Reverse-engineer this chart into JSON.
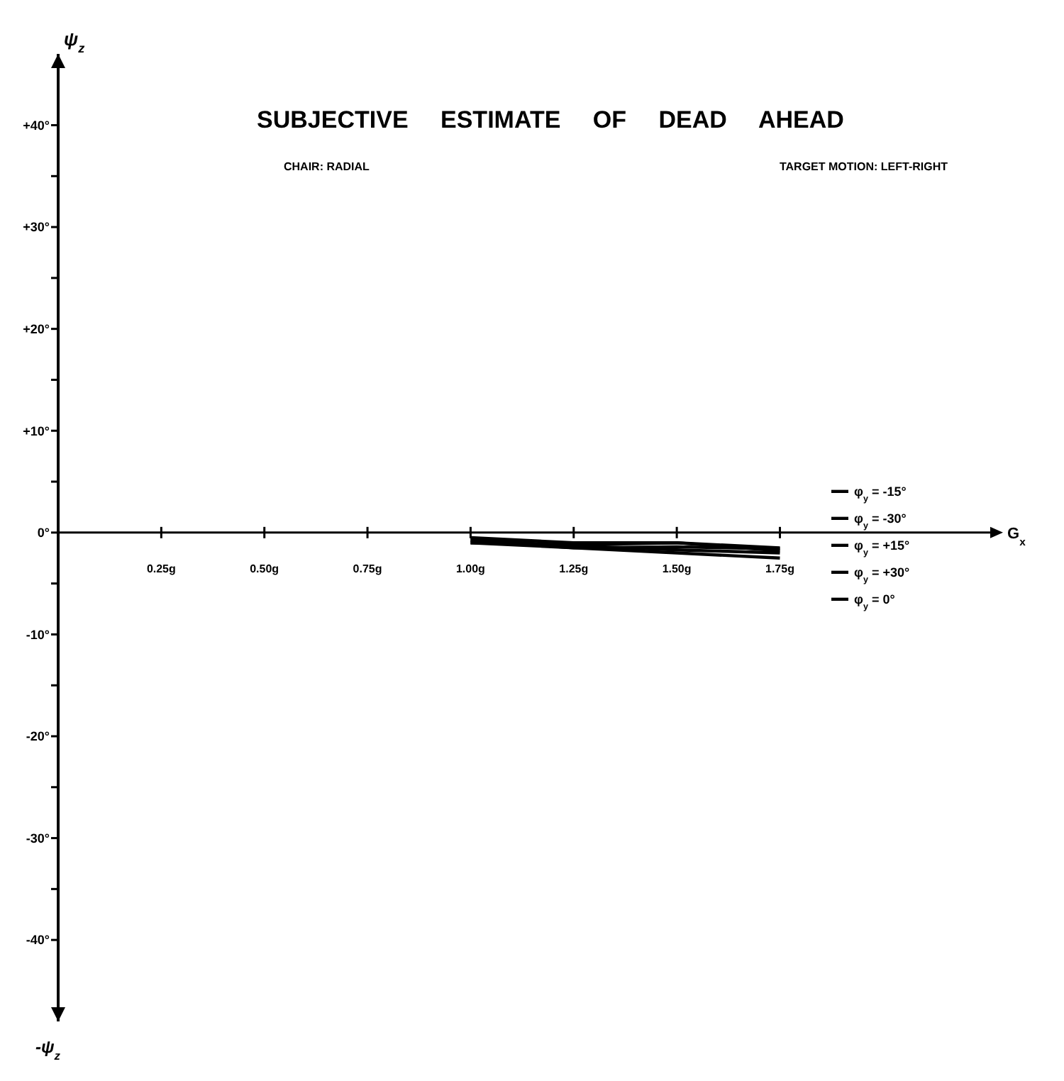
{
  "chart_data": {
    "type": "line",
    "title": "SUBJECTIVE ESTIMATE OF DEAD AHEAD",
    "subtitle": "CHAIR: RADIAL",
    "annotations": [
      "TARGET MOTION: LEFT-RIGHT",
      "-ψ$_{z}$"
    ],
    "xlabel": "G$_{x}$",
    "ylabel": "ψ$_{z}$",
    "x": [
      1.0,
      1.25,
      1.5,
      1.75
    ],
    "series": [
      {
        "name": "φ$_{y}$ = -15°",
        "color": "#000000",
        "values": [
          -0.5,
          -1.0,
          -1.0,
          -1.5
        ]
      },
      {
        "name": "φ$_{y}$ = -30°",
        "color": "#000000",
        "values": [
          -1.0,
          -1.2,
          -1.0,
          -1.8
        ]
      },
      {
        "name": "φ$_{y}$ = +15°",
        "color": "#000000",
        "values": [
          -0.7,
          -1.3,
          -1.7,
          -2.0
        ]
      },
      {
        "name": "φ$_{y}$ = +30°",
        "color": "#000000",
        "values": [
          -0.8,
          -1.5,
          -2.0,
          -2.5
        ]
      },
      {
        "name": "φ$_{y}$ = 0°",
        "color": "#000000",
        "values": [
          -1.0,
          -1.5,
          -1.4,
          -1.6
        ]
      }
    ],
    "xlim": [
      0,
      2.26
    ],
    "ylim": [
      -48,
      47
    ],
    "xticks": [
      {
        "value": 0.25,
        "label": "0.25g"
      },
      {
        "value": 0.5,
        "label": "0.50g"
      },
      {
        "value": 0.75,
        "label": "0.75g"
      },
      {
        "value": 1.0,
        "label": "1.00g"
      },
      {
        "value": 1.25,
        "label": "1.25g"
      },
      {
        "value": 1.5,
        "label": "1.50g"
      },
      {
        "value": 1.75,
        "label": "1.75g"
      }
    ],
    "yticks": [
      {
        "value": 40,
        "label": "+40°"
      },
      {
        "value": 35,
        "label": null
      },
      {
        "value": 30,
        "label": "+30°"
      },
      {
        "value": 25,
        "label": null
      },
      {
        "value": 20,
        "label": "+20°"
      },
      {
        "value": 15,
        "label": null
      },
      {
        "value": 10,
        "label": "+10°"
      },
      {
        "value": 5,
        "label": null
      },
      {
        "value": 0,
        "label": "0°"
      },
      {
        "value": -5,
        "label": null
      },
      {
        "value": -10,
        "label": "-10°"
      },
      {
        "value": -15,
        "label": null
      },
      {
        "value": -20,
        "label": "-20°"
      },
      {
        "value": -25,
        "label": null
      },
      {
        "value": -30,
        "label": "-30°"
      },
      {
        "value": -35,
        "label": null
      },
      {
        "value": -40,
        "label": "-40°"
      }
    ],
    "legend": "right",
    "marker": "none",
    "line_style": "solid"
  }
}
